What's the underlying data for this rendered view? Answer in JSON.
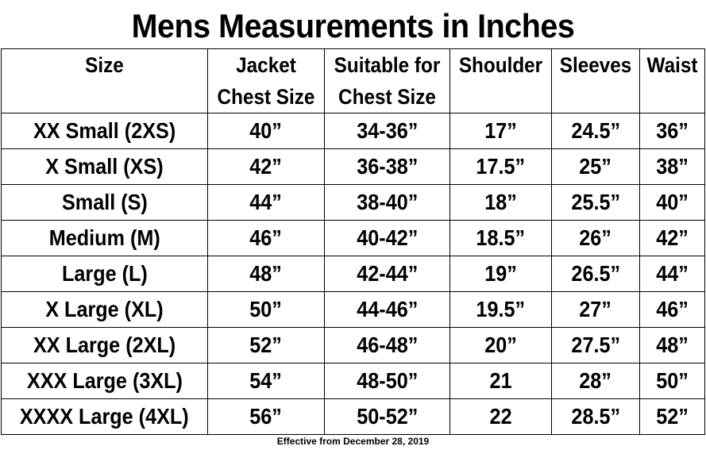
{
  "title": "Mens Measurements in Inches",
  "table": {
    "headers": [
      {
        "line1": "Size",
        "line2": ""
      },
      {
        "line1": "Jacket",
        "line2": "Chest Size"
      },
      {
        "line1": "Suitable for",
        "line2": "Chest Size"
      },
      {
        "line1": "Shoulder",
        "line2": ""
      },
      {
        "line1": "Sleeves",
        "line2": ""
      },
      {
        "line1": "Waist",
        "line2": ""
      }
    ],
    "rows": [
      [
        "XX Small (2XS)",
        "40”",
        "34-36”",
        "17”",
        "24.5”",
        "36”"
      ],
      [
        "X Small (XS)",
        "42”",
        "36-38”",
        "17.5”",
        "25”",
        "38”"
      ],
      [
        "Small (S)",
        "44”",
        "38-40”",
        "18”",
        "25.5”",
        "40”"
      ],
      [
        "Medium (M)",
        "46”",
        "40-42”",
        "18.5”",
        "26”",
        "42”"
      ],
      [
        "Large (L)",
        "48”",
        "42-44”",
        "19”",
        "26.5”",
        "44”"
      ],
      [
        "X Large (XL)",
        "50”",
        "44-46”",
        "19.5”",
        "27”",
        "46”"
      ],
      [
        "XX Large (2XL)",
        "52”",
        "46-48”",
        "20”",
        "27.5”",
        "48”"
      ],
      [
        "XXX Large (3XL)",
        "54”",
        "48-50”",
        "21",
        "28”",
        "50”"
      ],
      [
        "XXXX Large (4XL)",
        "56”",
        "50-52”",
        "22",
        "28.5”",
        "52”"
      ]
    ]
  },
  "footer": "Effective from December 28, 2019"
}
